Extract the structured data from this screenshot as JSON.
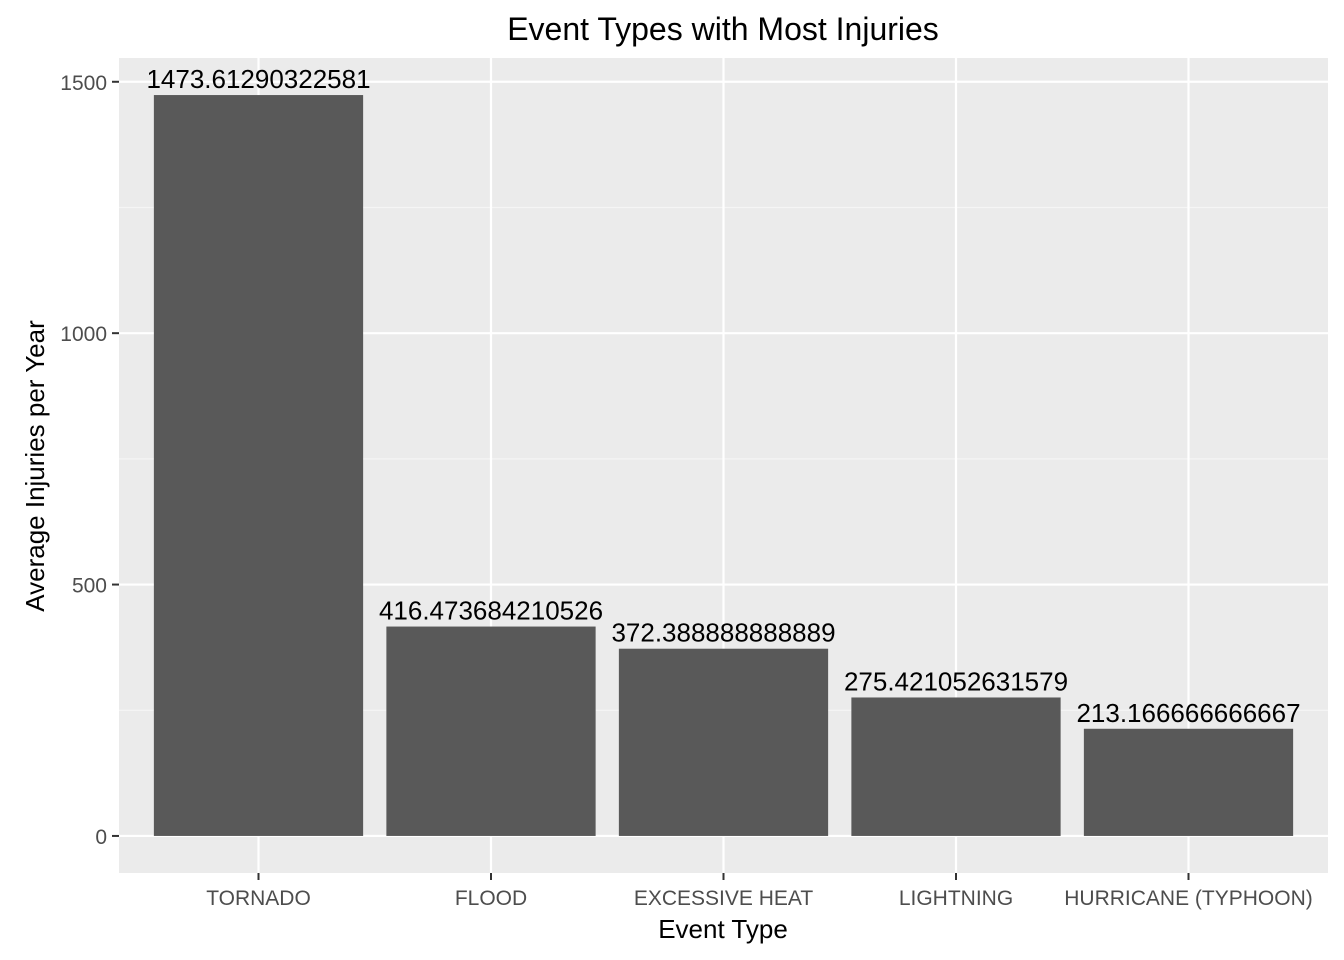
{
  "chart_data": {
    "type": "bar",
    "title": "Event Types with Most Injuries",
    "xlabel": "Event Type",
    "ylabel": "Average Injuries per Year",
    "categories": [
      "TORNADO",
      "FLOOD",
      "EXCESSIVE HEAT",
      "LIGHTNING",
      "HURRICANE (TYPHOON)"
    ],
    "values": [
      1473.61290322581,
      416.473684210526,
      372.388888888889,
      275.421052631579,
      213.166666666667
    ],
    "value_labels": [
      "1473.61290322581",
      "416.473684210526",
      "372.388888888889",
      "275.421052631579",
      "213.166666666667"
    ],
    "ylim": [
      -73.7,
      1547.3
    ],
    "yticks": [
      0,
      500,
      1000,
      1500
    ],
    "ytick_labels": [
      "0",
      "500",
      "1000",
      "1500"
    ],
    "grid": true,
    "legend": "none",
    "colors": {
      "bar": "#595959",
      "panel": "#ebebeb",
      "grid_major": "#ffffff",
      "grid_minor": "#f5f5f5",
      "tick": "#333333"
    }
  }
}
